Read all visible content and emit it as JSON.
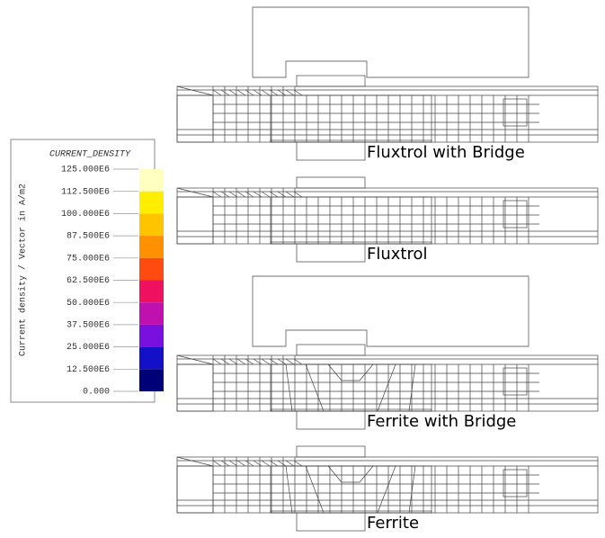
{
  "legend": {
    "title": "CURRENT_DENSITY",
    "axis_label": "Current density / Vector in A/m2",
    "ticks": [
      "125.000E6",
      "112.500E6",
      "100.000E6",
      "87.500E6",
      "75.000E6",
      "62.500E6",
      "50.000E6",
      "37.500E6",
      "25.000E6",
      "12.500E6",
      "0.000"
    ],
    "colors": [
      "#ffffc0",
      "#ffee00",
      "#ffc400",
      "#ff9000",
      "#ff4a10",
      "#f01060",
      "#c010b0",
      "#7a10e0",
      "#1410c8",
      "#000078"
    ]
  },
  "panels": [
    {
      "label": "Fluxtrol with Bridge"
    },
    {
      "label": "Fluxtrol"
    },
    {
      "label": "Ferrite with Bridge"
    },
    {
      "label": "Ferrite"
    }
  ]
}
